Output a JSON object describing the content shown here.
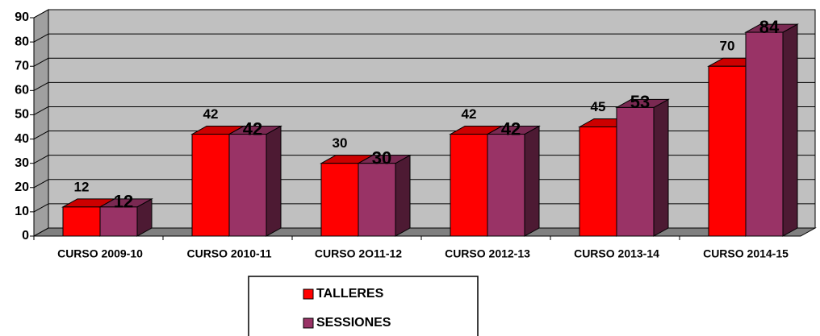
{
  "chart_data": {
    "type": "bar",
    "categories": [
      "CURSO 2009-10",
      "CURSO 2010-11",
      "CURSO 2O11-12",
      "CURSO 2012-13",
      "CURSO 2013-14",
      "CURSO 2014-15"
    ],
    "series": [
      {
        "name": "TALLERES",
        "color": "#ff0000",
        "values": [
          12,
          42,
          30,
          42,
          45,
          70
        ]
      },
      {
        "name": "SESSIONES",
        "color": "#993366",
        "values": [
          12,
          42,
          30,
          42,
          53,
          84
        ]
      }
    ],
    "ylim": [
      0,
      90
    ],
    "yticks": [
      0,
      10,
      20,
      30,
      40,
      50,
      60,
      70,
      80,
      90
    ],
    "grid": true
  }
}
